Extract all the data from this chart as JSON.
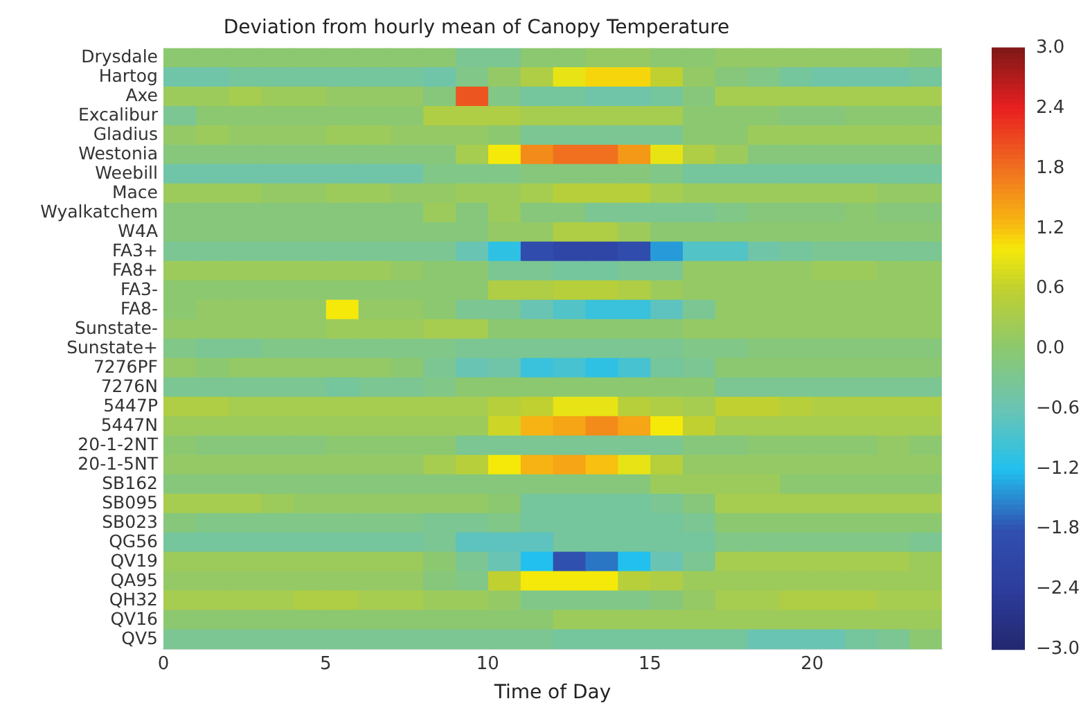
{
  "chart_data": {
    "type": "heatmap",
    "title": "Deviation from hourly mean of Canopy Temperature",
    "xlabel": "Time of Day",
    "x": [
      0.5,
      1.5,
      2.5,
      3.5,
      4.5,
      5.5,
      6.5,
      7.5,
      8.5,
      9.5,
      10.5,
      11.5,
      12.5,
      13.5,
      14.5,
      15.5,
      16.5,
      17.5,
      18.5,
      19.5,
      20.5,
      21.5,
      22.5,
      23.5
    ],
    "xlim": [
      0,
      24
    ],
    "xticks": [
      0,
      5,
      10,
      15,
      20
    ],
    "y_categories": [
      "Drysdale",
      "Hartog",
      "Axe",
      "Excalibur",
      "Gladius",
      "Westonia",
      "Weebill",
      "Mace",
      "Wyalkatchem",
      "W4A",
      "FA3+",
      "FA8+",
      "FA3-",
      "FA8-",
      "Sunstate-",
      "Sunstate+",
      "7276PF",
      "7276N",
      "5447P",
      "5447N",
      "20-1-2NT",
      "20-1-5NT",
      "SB162",
      "SB095",
      "SB023",
      "QG56",
      "QV19",
      "QA95",
      "QH32",
      "QV16",
      "QV5"
    ],
    "cells": [
      [
        0,
        0,
        0,
        0,
        0,
        0,
        0,
        0,
        0,
        -0.3,
        -0.3,
        0,
        0,
        0.1,
        0.1,
        0,
        0,
        0.1,
        0.1,
        0.1,
        0.1,
        0.1,
        0.1,
        0
      ],
      [
        -0.5,
        -0.5,
        -0.4,
        -0.4,
        -0.4,
        -0.4,
        -0.4,
        -0.4,
        -0.5,
        -0.2,
        0.1,
        0.4,
        0.9,
        1.1,
        1.1,
        0.6,
        0.1,
        -0.1,
        -0.2,
        -0.4,
        -0.5,
        -0.5,
        -0.5,
        -0.4
      ],
      [
        0.2,
        0.2,
        0.3,
        0.2,
        0.2,
        0.1,
        0.1,
        0.1,
        -0.1,
        2.0,
        -0.2,
        -0.4,
        -0.4,
        -0.5,
        -0.5,
        -0.4,
        -0.1,
        0.3,
        0.3,
        0.3,
        0.3,
        0.3,
        0.3,
        0.3
      ],
      [
        -0.3,
        0,
        0,
        0,
        0,
        0,
        0,
        0,
        0.4,
        0.4,
        0.4,
        0.3,
        0.3,
        0.3,
        0.3,
        0.3,
        0,
        0,
        0,
        -0.1,
        -0.1,
        0,
        0,
        0
      ],
      [
        0.1,
        0.2,
        0.1,
        0.1,
        0.1,
        0.2,
        0.2,
        0.1,
        0.1,
        0.1,
        0,
        -0.3,
        -0.3,
        -0.3,
        -0.3,
        -0.3,
        0,
        0,
        0.2,
        0.2,
        0.2,
        0.2,
        0.2,
        0.2
      ],
      [
        -0.1,
        -0.1,
        -0.1,
        -0.1,
        -0.1,
        -0.1,
        -0.1,
        -0.1,
        -0.1,
        0.3,
        1.0,
        1.6,
        1.8,
        1.8,
        1.5,
        0.9,
        0.4,
        0.2,
        -0.1,
        -0.1,
        -0.1,
        -0.1,
        -0.1,
        -0.1
      ],
      [
        -0.5,
        -0.5,
        -0.5,
        -0.5,
        -0.5,
        -0.5,
        -0.5,
        -0.5,
        -0.2,
        -0.2,
        -0.2,
        -0.1,
        -0.1,
        -0.1,
        -0.1,
        -0.2,
        -0.4,
        -0.4,
        -0.4,
        -0.4,
        -0.4,
        -0.4,
        -0.4,
        -0.4
      ],
      [
        0.2,
        0.2,
        0.2,
        0.1,
        0.1,
        0.2,
        0.2,
        0.1,
        0.1,
        0.2,
        0.2,
        0.3,
        0.5,
        0.5,
        0.5,
        0.3,
        0.2,
        0.2,
        0.2,
        0.2,
        0.2,
        0.2,
        0.1,
        0.1
      ],
      [
        -0.1,
        -0.1,
        -0.1,
        -0.1,
        -0.1,
        -0.1,
        -0.1,
        -0.1,
        0.2,
        -0.1,
        0.2,
        -0.1,
        -0.1,
        -0.3,
        -0.3,
        -0.3,
        -0.3,
        -0.2,
        -0.1,
        -0.1,
        -0.1,
        0,
        -0.1,
        -0.1
      ],
      [
        -0.1,
        -0.1,
        -0.1,
        -0.1,
        -0.1,
        -0.1,
        -0.1,
        -0.1,
        -0.1,
        -0.1,
        0.1,
        0.1,
        0.4,
        0.4,
        0.2,
        0,
        0,
        0,
        0,
        0,
        0,
        0,
        0,
        0
      ],
      [
        -0.3,
        -0.3,
        -0.3,
        -0.3,
        -0.3,
        -0.3,
        -0.3,
        -0.3,
        -0.3,
        -0.6,
        -1.1,
        -1.9,
        -2.1,
        -2.1,
        -1.9,
        -1.4,
        -0.8,
        -0.8,
        -0.5,
        -0.4,
        -0.3,
        -0.3,
        -0.3,
        -0.3
      ],
      [
        0.2,
        0.2,
        0.2,
        0.2,
        0.2,
        0.2,
        0.2,
        0.1,
        0,
        0,
        -0.3,
        -0.3,
        -0.4,
        -0.4,
        -0.3,
        -0.3,
        0.1,
        0.1,
        0.1,
        0.1,
        0.2,
        0.2,
        0.1,
        0.1
      ],
      [
        0,
        0,
        0,
        0,
        0,
        0,
        0,
        0,
        0,
        0,
        0.4,
        0.4,
        0.5,
        0.5,
        0.4,
        0.2,
        0.1,
        0.1,
        0.1,
        0.1,
        0.1,
        0.1,
        0.1,
        0.1
      ],
      [
        0,
        0.1,
        0.1,
        0.1,
        0.1,
        1.0,
        0.1,
        0.1,
        0,
        -0.3,
        -0.3,
        -0.6,
        -0.8,
        -1.0,
        -1.0,
        -0.7,
        -0.3,
        0.1,
        0.1,
        0.1,
        0.1,
        0.1,
        0.1,
        0.1
      ],
      [
        0.1,
        0.1,
        0.1,
        0.1,
        0.1,
        0.2,
        0.2,
        0.2,
        0.3,
        0.3,
        0,
        0,
        0,
        0,
        0,
        0,
        0.1,
        0.1,
        0.1,
        0.1,
        0.1,
        0.1,
        0.1,
        0.1
      ],
      [
        -0.2,
        -0.3,
        -0.3,
        -0.2,
        -0.2,
        -0.2,
        -0.2,
        -0.2,
        -0.2,
        -0.3,
        -0.3,
        -0.3,
        -0.3,
        -0.3,
        -0.3,
        -0.3,
        -0.2,
        -0.2,
        -0.1,
        -0.1,
        -0.1,
        -0.1,
        -0.1,
        -0.1
      ],
      [
        0.1,
        0,
        0.1,
        0.1,
        0.1,
        0.1,
        0.1,
        0,
        -0.3,
        -0.6,
        -0.5,
        -1.0,
        -0.9,
        -1.1,
        -0.9,
        -0.4,
        -0.3,
        0,
        0,
        0,
        0,
        0,
        0,
        0
      ],
      [
        -0.3,
        -0.3,
        -0.3,
        -0.3,
        -0.3,
        -0.4,
        -0.3,
        -0.3,
        -0.2,
        0,
        0,
        0,
        0,
        0,
        0,
        0,
        0,
        -0.3,
        -0.3,
        -0.3,
        -0.3,
        -0.3,
        -0.3,
        -0.3
      ],
      [
        0.4,
        0.4,
        0.3,
        0.3,
        0.3,
        0.3,
        0.3,
        0.3,
        0.3,
        0.3,
        0.5,
        0.6,
        0.9,
        0.9,
        0.5,
        0.4,
        0.3,
        0.6,
        0.6,
        0.5,
        0.4,
        0.4,
        0.4,
        0.4
      ],
      [
        0.2,
        0.2,
        0.2,
        0.2,
        0.2,
        0.2,
        0.2,
        0.2,
        0.2,
        0.2,
        0.7,
        1.3,
        1.4,
        1.6,
        1.4,
        1.0,
        0.6,
        0.3,
        0.3,
        0.3,
        0.3,
        0.3,
        0.3,
        0.3
      ],
      [
        0,
        -0.1,
        -0.1,
        -0.1,
        -0.1,
        0,
        0,
        0,
        0,
        -0.3,
        -0.3,
        -0.3,
        -0.3,
        -0.3,
        -0.3,
        -0.3,
        -0.1,
        -0.1,
        0,
        0,
        0,
        0,
        0.1,
        0
      ],
      [
        0.1,
        0.1,
        0.1,
        0.1,
        0.1,
        0.1,
        0.1,
        0.1,
        0.3,
        0.5,
        1.0,
        1.3,
        1.4,
        1.2,
        0.9,
        0.5,
        0.1,
        0.1,
        0.1,
        0.1,
        0.1,
        0.1,
        0.1,
        0.1
      ],
      [
        -0.1,
        -0.1,
        -0.1,
        -0.1,
        -0.1,
        -0.1,
        -0.1,
        -0.1,
        -0.1,
        -0.1,
        -0.1,
        -0.1,
        -0.1,
        -0.1,
        -0.1,
        0.2,
        0.2,
        0.2,
        0.2,
        0,
        0,
        0,
        0,
        0
      ],
      [
        0.3,
        0.3,
        0.3,
        0.2,
        0.1,
        0.1,
        0.1,
        0.1,
        0.1,
        0.1,
        0,
        -0.4,
        -0.4,
        -0.4,
        -0.4,
        -0.3,
        -0.1,
        0.3,
        0.3,
        0.3,
        0.3,
        0.3,
        0.3,
        0.3
      ],
      [
        -0.1,
        -0.2,
        -0.2,
        -0.2,
        -0.2,
        -0.2,
        -0.2,
        -0.2,
        -0.3,
        -0.3,
        -0.2,
        -0.4,
        -0.4,
        -0.4,
        -0.4,
        -0.4,
        -0.3,
        0,
        0,
        0,
        0,
        0,
        0,
        0
      ],
      [
        -0.4,
        -0.4,
        -0.4,
        -0.4,
        -0.4,
        -0.4,
        -0.4,
        -0.4,
        -0.3,
        -0.7,
        -0.7,
        -0.7,
        -0.4,
        -0.4,
        -0.4,
        -0.4,
        -0.4,
        -0.2,
        -0.2,
        -0.2,
        -0.2,
        -0.2,
        -0.2,
        -0.3
      ],
      [
        0.2,
        0.2,
        0.2,
        0.2,
        0.2,
        0.2,
        0.2,
        0.2,
        0,
        -0.3,
        -0.6,
        -1.2,
        -1.8,
        -1.6,
        -1.2,
        -0.6,
        -0.3,
        0.3,
        0.3,
        0.3,
        0.3,
        0.3,
        0.3,
        0.2
      ],
      [
        0.1,
        0.1,
        0.1,
        0.1,
        0.1,
        0.1,
        0.1,
        0.1,
        -0.1,
        -0.2,
        0.6,
        1.0,
        1.0,
        1.0,
        0.5,
        0.4,
        0.2,
        0.2,
        0.2,
        0.2,
        0.2,
        0.2,
        0.2,
        0.2
      ],
      [
        0.3,
        0.3,
        0.3,
        0.3,
        0.4,
        0.4,
        0.3,
        0.3,
        0.2,
        0.2,
        0.1,
        -0.2,
        -0.2,
        -0.2,
        -0.2,
        -0.1,
        0.1,
        0.3,
        0.3,
        0.4,
        0.4,
        0.4,
        0.3,
        0.3
      ],
      [
        0,
        0,
        0,
        0,
        0,
        0,
        0,
        0,
        0,
        0,
        0,
        0,
        0.2,
        0.2,
        0.2,
        0.2,
        0.2,
        0.2,
        0.2,
        0.2,
        0.2,
        0.2,
        0.2,
        0.2
      ],
      [
        -0.3,
        -0.3,
        -0.3,
        -0.3,
        -0.3,
        -0.3,
        -0.3,
        -0.3,
        -0.3,
        -0.3,
        -0.3,
        -0.3,
        -0.4,
        -0.4,
        -0.4,
        -0.4,
        -0.4,
        -0.4,
        -0.6,
        -0.6,
        -0.6,
        -0.4,
        -0.3,
        0
      ]
    ],
    "clim": [
      -3,
      3
    ],
    "cticks": [
      {
        "value": 3,
        "label": "3.0"
      },
      {
        "value": 2.4,
        "label": "2.4"
      },
      {
        "value": 1.8,
        "label": "1.8"
      },
      {
        "value": 1.2,
        "label": "1.2"
      },
      {
        "value": 0.6,
        "label": "0.6"
      },
      {
        "value": 0,
        "label": "0.0"
      },
      {
        "value": -0.6,
        "label": "−0.6"
      },
      {
        "value": -1.2,
        "label": "−1.2"
      },
      {
        "value": -1.8,
        "label": "−1.8"
      },
      {
        "value": -2.4,
        "label": "−2.4"
      },
      {
        "value": -3,
        "label": "−3.0"
      }
    ]
  }
}
